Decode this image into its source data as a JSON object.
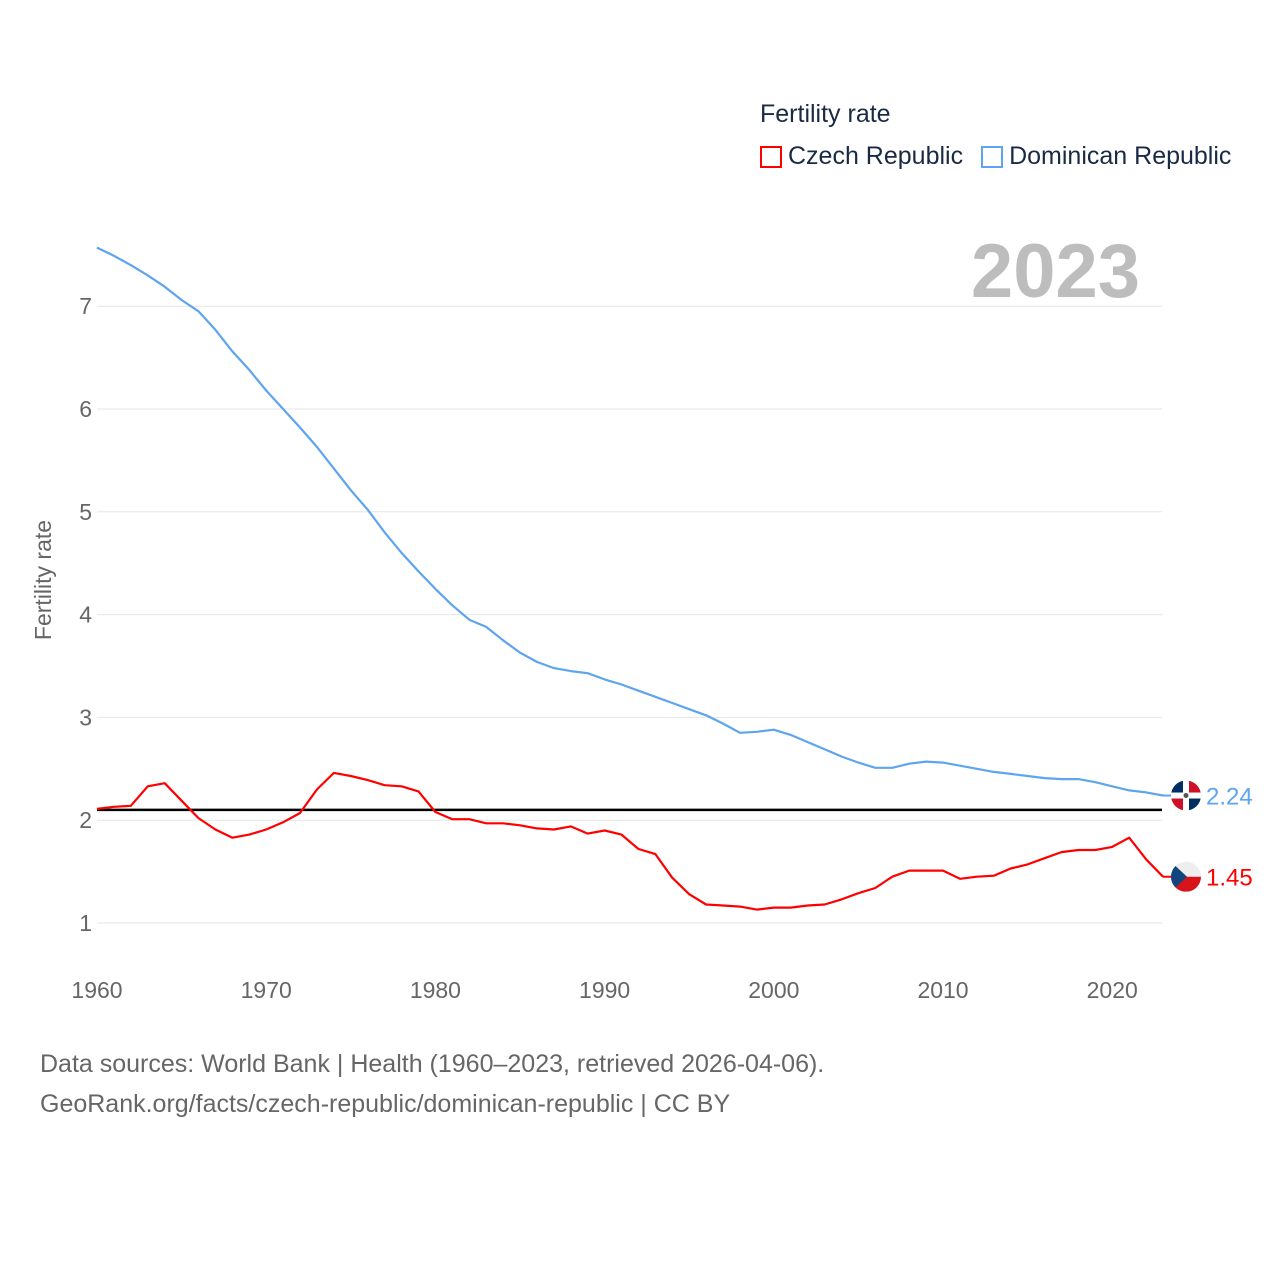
{
  "chart_data": {
    "type": "line",
    "title": "",
    "ylabel": "Fertility rate",
    "xlabel": "",
    "xlim": [
      1960,
      2023
    ],
    "ylim": [
      0.4,
      7.8
    ],
    "yticks": [
      1,
      2,
      3,
      4,
      5,
      6,
      7
    ],
    "xticks": [
      1960,
      1970,
      1980,
      1990,
      2000,
      2010,
      2020
    ],
    "grid": true,
    "legend_title": "Fertility rate",
    "legend_position": "top-right",
    "year_label": "2023",
    "reference_line": 2.1,
    "x_start": 1960,
    "series": [
      {
        "name": "Czech Republic",
        "color": "#ff0000",
        "end_label": "1.45",
        "values": [
          2.11,
          2.13,
          2.14,
          2.33,
          2.36,
          2.19,
          2.02,
          1.91,
          1.83,
          1.86,
          1.91,
          1.98,
          2.07,
          2.3,
          2.46,
          2.43,
          2.39,
          2.34,
          2.33,
          2.28,
          2.08,
          2.01,
          2.01,
          1.97,
          1.97,
          1.95,
          1.92,
          1.91,
          1.94,
          1.87,
          1.9,
          1.86,
          1.72,
          1.67,
          1.44,
          1.28,
          1.18,
          1.17,
          1.16,
          1.13,
          1.15,
          1.15,
          1.17,
          1.18,
          1.23,
          1.29,
          1.34,
          1.45,
          1.51,
          1.51,
          1.51,
          1.43,
          1.45,
          1.46,
          1.53,
          1.57,
          1.63,
          1.69,
          1.71,
          1.71,
          1.74,
          1.83,
          1.62,
          1.45
        ]
      },
      {
        "name": "Dominican Republic",
        "color": "#5ea4ee",
        "end_label": "2.24",
        "values": [
          7.57,
          7.49,
          7.4,
          7.3,
          7.19,
          7.06,
          6.95,
          6.77,
          6.56,
          6.38,
          6.18,
          6.0,
          5.82,
          5.63,
          5.42,
          5.21,
          5.02,
          4.8,
          4.6,
          4.42,
          4.25,
          4.09,
          3.95,
          3.88,
          3.75,
          3.63,
          3.54,
          3.48,
          3.45,
          3.43,
          3.37,
          3.32,
          3.26,
          3.2,
          3.14,
          3.08,
          3.02,
          2.94,
          2.85,
          2.86,
          2.88,
          2.83,
          2.76,
          2.69,
          2.62,
          2.56,
          2.51,
          2.51,
          2.55,
          2.57,
          2.56,
          2.53,
          2.5,
          2.47,
          2.45,
          2.43,
          2.41,
          2.4,
          2.4,
          2.37,
          2.33,
          2.29,
          2.27,
          2.24
        ]
      }
    ]
  },
  "footer": {
    "line1": "Data sources: World Bank | Health (1960–2023, retrieved 2026-04-06).",
    "line2": "GeoRank.org/facts/czech-republic/dominican-republic | CC BY"
  }
}
